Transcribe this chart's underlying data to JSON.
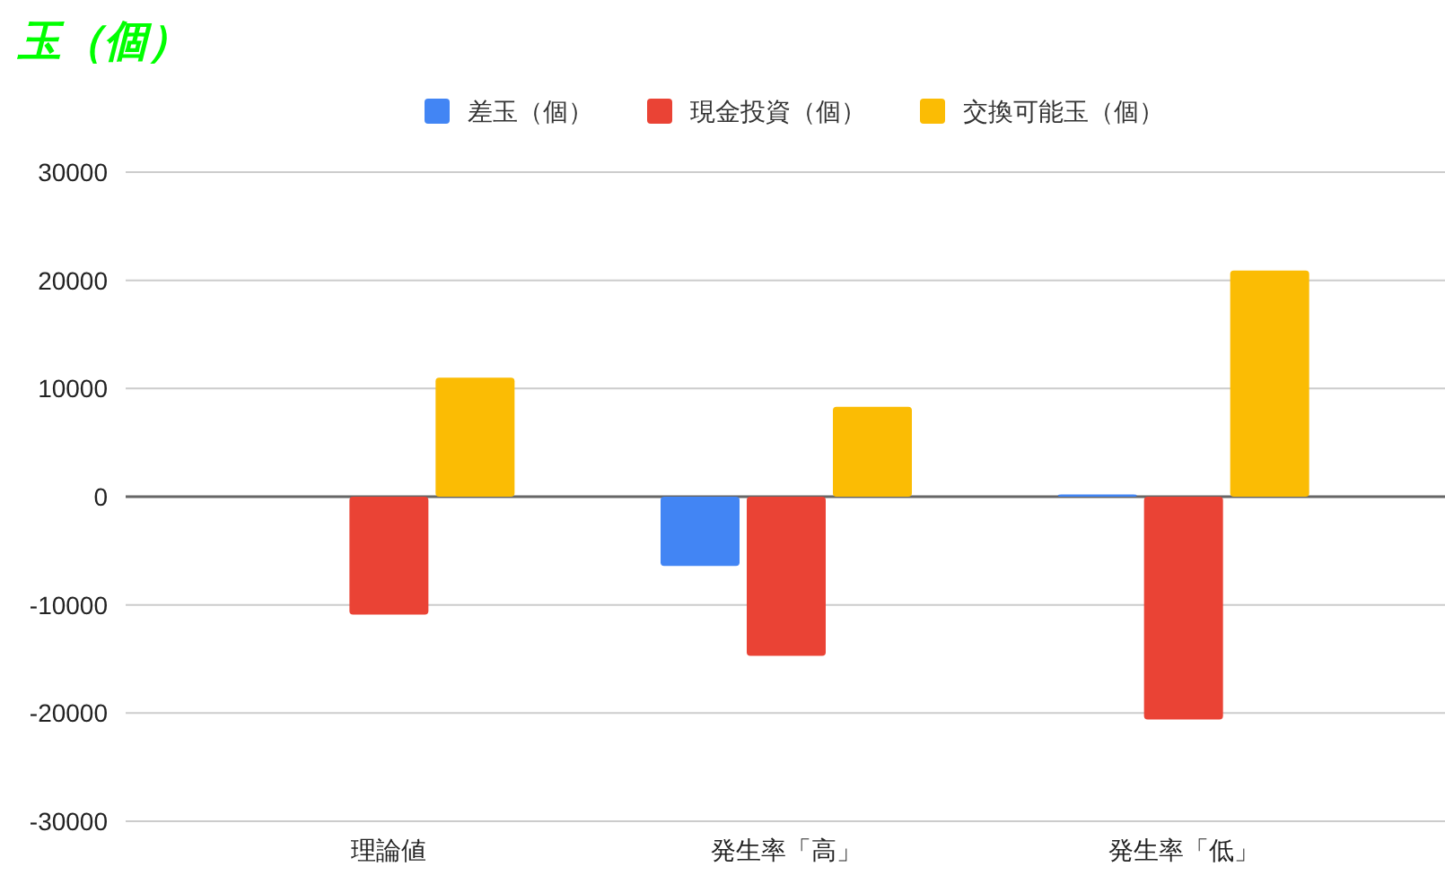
{
  "chart_data": {
    "type": "bar",
    "title": "玉（個）",
    "categories": [
      "理論値",
      "発生率「高」",
      "発生率「低」"
    ],
    "series": [
      {
        "name": "差玉（個）",
        "color": "#4285f4",
        "values": [
          0,
          -6400,
          200
        ]
      },
      {
        "name": "現金投資（個）",
        "color": "#ea4335",
        "values": [
          -10900,
          -14700,
          -20600
        ]
      },
      {
        "name": "交換可能玉（個）",
        "color": "#fbbc04",
        "values": [
          11000,
          8300,
          20900
        ]
      }
    ],
    "ylim": [
      -30000,
      30000
    ],
    "yticks": [
      -30000,
      -20000,
      -10000,
      0,
      10000,
      20000,
      30000
    ],
    "grid": "y",
    "legend": "top"
  }
}
